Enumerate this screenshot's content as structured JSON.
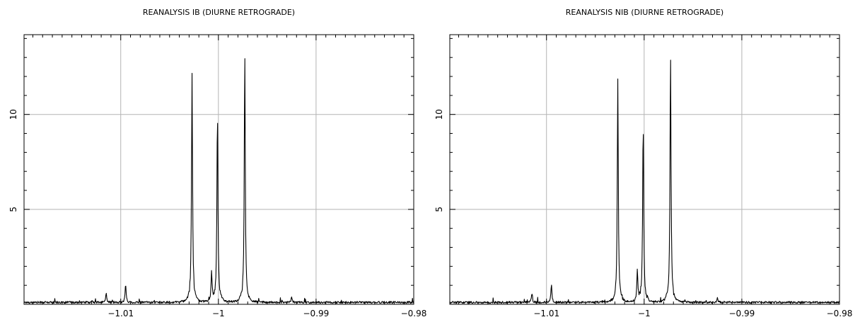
{
  "chart_data": [
    {
      "type": "line",
      "title": "REANALYSIS IB (DIURNE RETROGRADE)",
      "xlabel": "",
      "ylabel": "",
      "xlim": [
        -1.0199,
        -0.98
      ],
      "ylim": [
        0,
        14.2
      ],
      "grid": true,
      "x_ticks": [
        -1.01,
        -1,
        -0.99,
        -0.98
      ],
      "x_tick_labels": [
        "−1.01",
        "−1",
        "−0.99",
        "−0.98"
      ],
      "y_ticks": [
        5,
        10
      ],
      "y_tick_labels": [
        "5",
        "10"
      ],
      "peaks": [
        {
          "x": -1.0115,
          "y": 0.55
        },
        {
          "x": -1.0095,
          "y": 1.05
        },
        {
          "x": -1.0027,
          "y": 11.8
        },
        {
          "x": -1.0007,
          "y": 1.7
        },
        {
          "x": -1.0001,
          "y": 9.8
        },
        {
          "x": -0.9973,
          "y": 13.0
        },
        {
          "x": -0.9925,
          "y": 0.3
        }
      ],
      "baseline": 0.12
    },
    {
      "type": "line",
      "title": "REANALYSIS NIB (DIURNE RETROGRADE)",
      "xlabel": "",
      "ylabel": "",
      "xlim": [
        -1.0199,
        -0.98
      ],
      "ylim": [
        0,
        14.2
      ],
      "grid": true,
      "x_ticks": [
        -1.01,
        -1,
        -0.99,
        -0.98
      ],
      "x_tick_labels": [
        "−1.01",
        "−1",
        "−0.99",
        "−0.98"
      ],
      "y_ticks": [
        5,
        10
      ],
      "y_tick_labels": [
        "5",
        "10"
      ],
      "peaks": [
        {
          "x": -1.0115,
          "y": 0.55
        },
        {
          "x": -1.0095,
          "y": 1.05
        },
        {
          "x": -1.0027,
          "y": 11.5
        },
        {
          "x": -1.0007,
          "y": 1.7
        },
        {
          "x": -1.0001,
          "y": 9.5
        },
        {
          "x": -0.9973,
          "y": 12.9
        },
        {
          "x": -0.9925,
          "y": 0.3
        }
      ],
      "baseline": 0.12
    }
  ]
}
